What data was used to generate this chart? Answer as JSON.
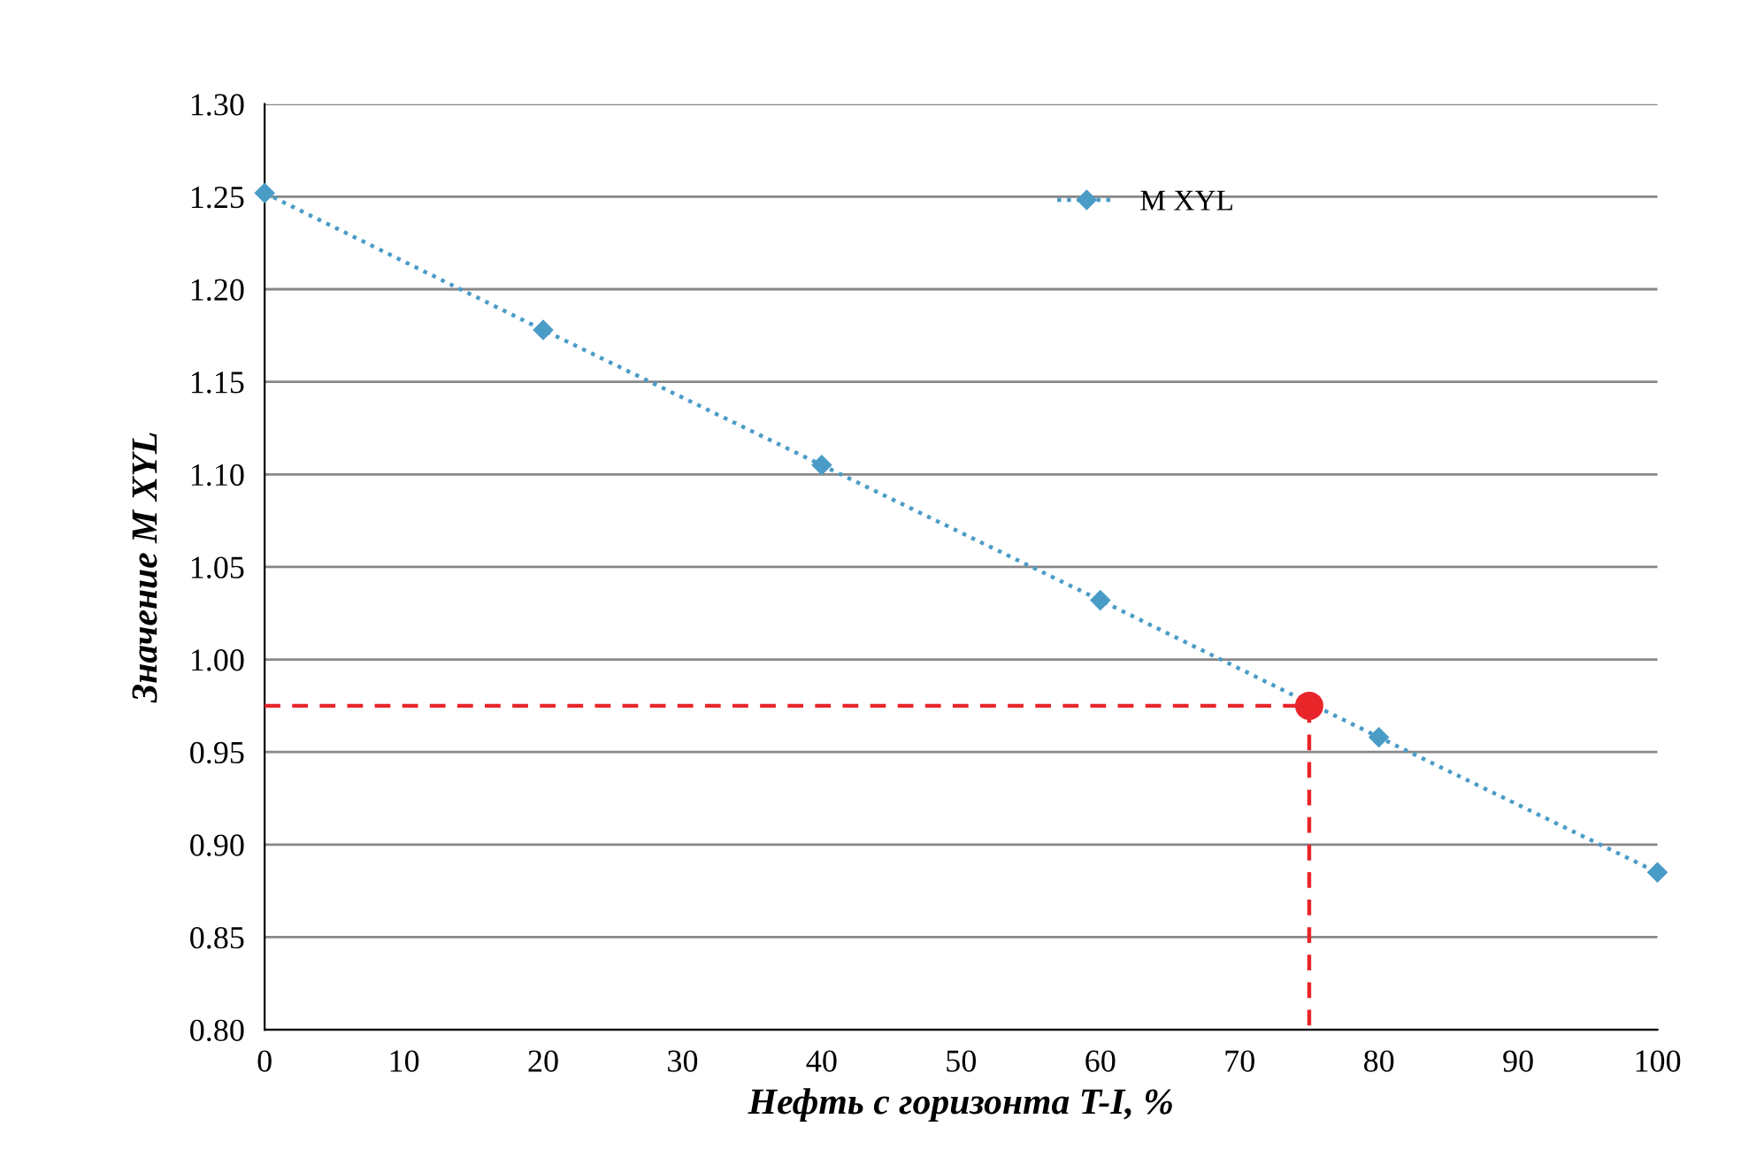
{
  "chart_data": {
    "type": "line",
    "xlabel": "Нефть с горизонта T-I, %",
    "ylabel": "Значение M XYL",
    "xlim": [
      0,
      100
    ],
    "xticks": [
      0,
      10,
      20,
      30,
      40,
      50,
      60,
      70,
      80,
      90,
      100
    ],
    "ylim": [
      0.8,
      1.3
    ],
    "yticks": [
      {
        "value": 0.8,
        "label": "0.80"
      },
      {
        "value": 0.85,
        "label": "0.85"
      },
      {
        "value": 0.9,
        "label": "0.90"
      },
      {
        "value": 0.95,
        "label": "0.95"
      },
      {
        "value": 1.0,
        "label": "1.00"
      },
      {
        "value": 1.05,
        "label": "1.05"
      },
      {
        "value": 1.1,
        "label": "1.10"
      },
      {
        "value": 1.15,
        "label": "1.15"
      },
      {
        "value": 1.2,
        "label": "1.20"
      },
      {
        "value": 1.25,
        "label": "1.25"
      },
      {
        "value": 1.3,
        "label": "1.30"
      }
    ],
    "grid": "y",
    "legend": "top right",
    "series": [
      {
        "name": "M XYL",
        "color": "#4a9cc7",
        "x": [
          0,
          20,
          40,
          60,
          80,
          100
        ],
        "values": [
          1.252,
          1.178,
          1.105,
          1.032,
          0.958,
          0.885
        ],
        "marker": "diamond",
        "line_style": "dotted"
      },
      {
        "type": "line",
        "color": "#e8262a",
        "x": [
          0,
          75,
          75
        ],
        "values": [
          0.975,
          0.975,
          0.8
        ],
        "marker": "none",
        "line_style": "dashed"
      },
      {
        "type": "scatter",
        "color": "#e8262a",
        "x": [
          75
        ],
        "values": [
          0.975
        ],
        "marker": "circle"
      }
    ]
  }
}
